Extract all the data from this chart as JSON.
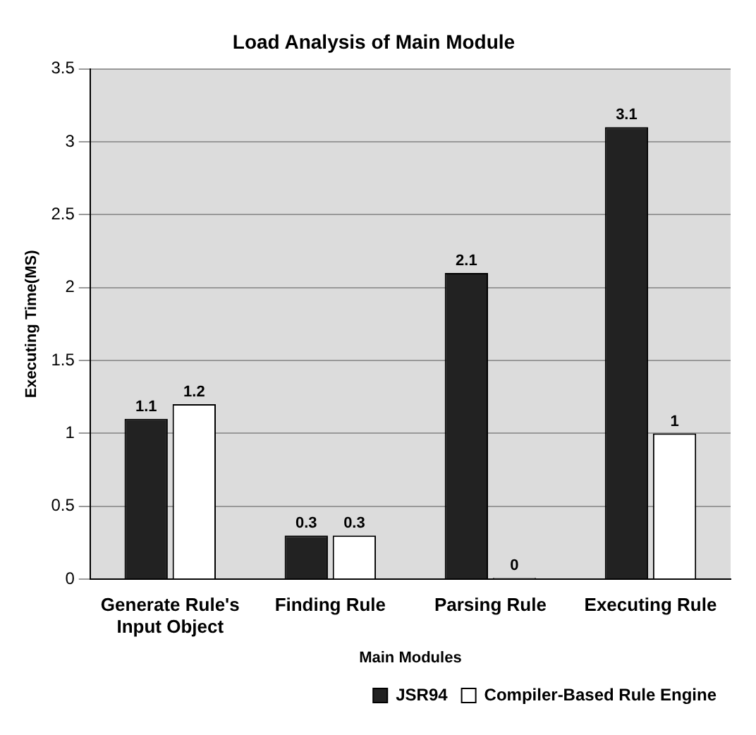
{
  "chart_data": {
    "type": "bar",
    "title": "Load Analysis of Main Module",
    "xlabel": "Main Modules",
    "ylabel": "Executing Time(MS)",
    "categories": [
      "Generate Rule's Input Object",
      "Finding Rule",
      "Parsing Rule",
      "Executing Rule"
    ],
    "series": [
      {
        "name": "JSR94",
        "color": "#222222",
        "values": [
          1.1,
          0.3,
          2.1,
          3.1
        ]
      },
      {
        "name": "Compiler-Based Rule Engine",
        "color": "#ffffff",
        "values": [
          1.2,
          0.3,
          0,
          1
        ]
      }
    ],
    "ylim": [
      0,
      3.5
    ],
    "yticks": [
      0,
      0.5,
      1,
      1.5,
      2,
      2.5,
      3,
      3.5
    ],
    "grid": "y",
    "legend": "bottom right",
    "data_labels": true
  }
}
